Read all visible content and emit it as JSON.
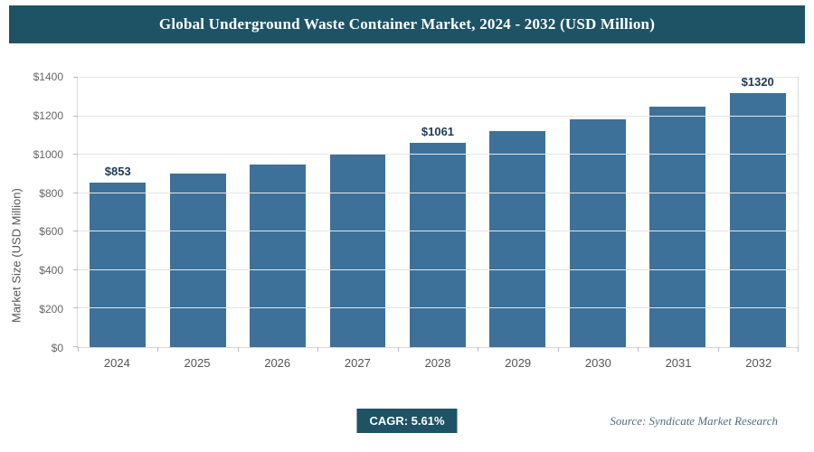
{
  "header": {
    "title": "Global Underground Waste Container Market, 2024 - 2032 (USD Million)"
  },
  "colors": {
    "accent": "#1d5365",
    "bar": "#3d7199",
    "grid": "#e5e5e5"
  },
  "chart_data": {
    "type": "bar",
    "title": "Global Underground Waste Container Market, 2024 - 2032 (USD Million)",
    "categories": [
      "2024",
      "2025",
      "2026",
      "2027",
      "2028",
      "2029",
      "2030",
      "2031",
      "2032"
    ],
    "values": [
      853,
      901,
      951,
      1005,
      1061,
      1121,
      1183,
      1250,
      1320
    ],
    "value_labels": [
      "$853",
      "",
      "",
      "",
      "$1061",
      "",
      "",
      "",
      "$1320"
    ],
    "xlabel": "",
    "ylabel": "Market Size (USD Million)",
    "ylim": [
      0,
      1400
    ],
    "ytick_step": 200,
    "yticks": [
      "$0",
      "$200",
      "$400",
      "$600",
      "$800",
      "$1000",
      "$1200",
      "$1400"
    ],
    "grid": true,
    "legend": "none"
  },
  "footer": {
    "cagr_label": "CAGR: 5.61%",
    "source": "Source: Syndicate Market Research"
  }
}
